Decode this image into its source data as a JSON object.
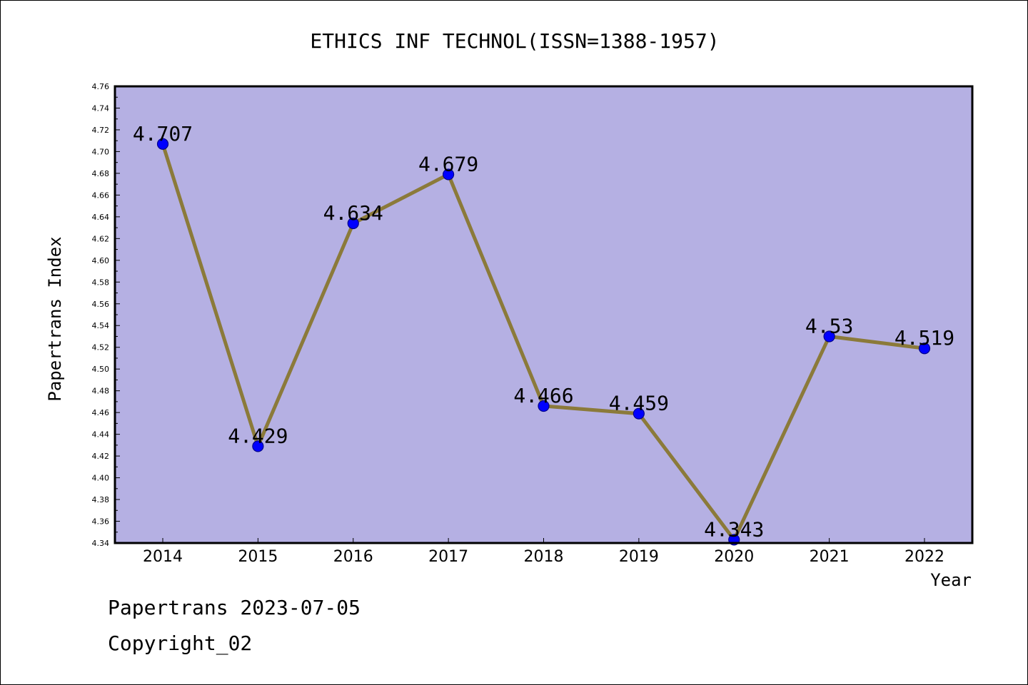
{
  "chart_data": {
    "type": "line",
    "title": "ETHICS INF TECHNOL(ISSN=1388-1957)",
    "xlabel": "Year",
    "ylabel": "Papertrans Index",
    "x": [
      "2014",
      "2015",
      "2016",
      "2017",
      "2018",
      "2019",
      "2020",
      "2021",
      "2022"
    ],
    "series": [
      {
        "values": [
          4.707,
          4.429,
          4.634,
          4.679,
          4.466,
          4.459,
          4.343,
          4.53,
          4.519
        ]
      }
    ],
    "data_labels": [
      "4.707",
      "4.429",
      "4.634",
      "4.679",
      "4.466",
      "4.459",
      "4.343",
      "4.53",
      "4.519"
    ],
    "ylim": [
      4.34,
      4.76
    ],
    "ytick_step": 0.02,
    "yticks": [
      "4.34",
      "4.36",
      "4.38",
      "4.40",
      "4.42",
      "4.44",
      "4.46",
      "4.48",
      "4.50",
      "4.52",
      "4.54",
      "4.56",
      "4.58",
      "4.60",
      "4.62",
      "4.64",
      "4.66",
      "4.68",
      "4.70",
      "4.72",
      "4.74",
      "4.76"
    ],
    "grid": false,
    "legend": "none",
    "colors": {
      "plot_background": "#b5b0e3",
      "line": "#8b7a3a",
      "marker": "#0000ff",
      "marker_edge": "#00008b"
    }
  },
  "footer": {
    "date_line": "Papertrans 2023-07-05",
    "copyright": "Copyright_02"
  }
}
